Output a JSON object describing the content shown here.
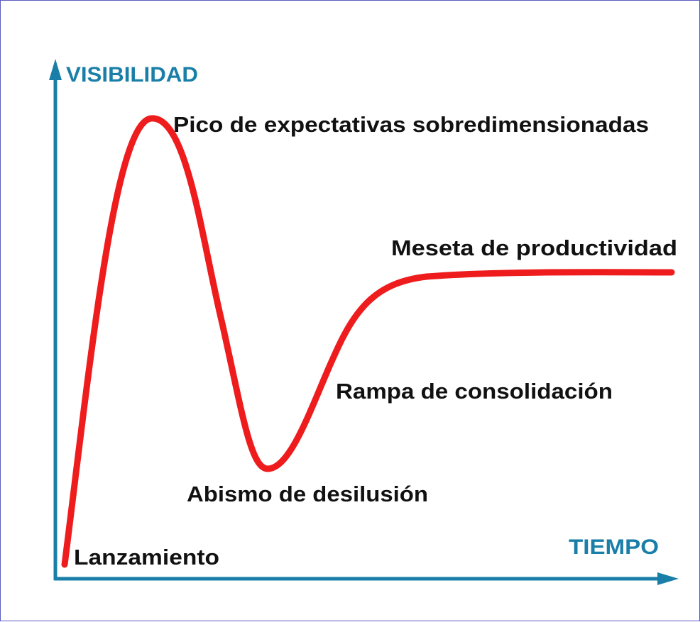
{
  "colors": {
    "axis": "#1a7fa8",
    "curve": "#ee1c1c",
    "border": "#5a5ac0",
    "text": "#111111"
  },
  "axes": {
    "y_label": "VISIBILIDAD",
    "x_label": "TIEMPO"
  },
  "phases": [
    {
      "label": "Lanzamiento"
    },
    {
      "label": "Pico de expectativas sobredimensionadas"
    },
    {
      "label": "Abismo de desilusión"
    },
    {
      "label": "Rampa de consolidación"
    },
    {
      "label": "Meseta de productividad"
    }
  ]
}
